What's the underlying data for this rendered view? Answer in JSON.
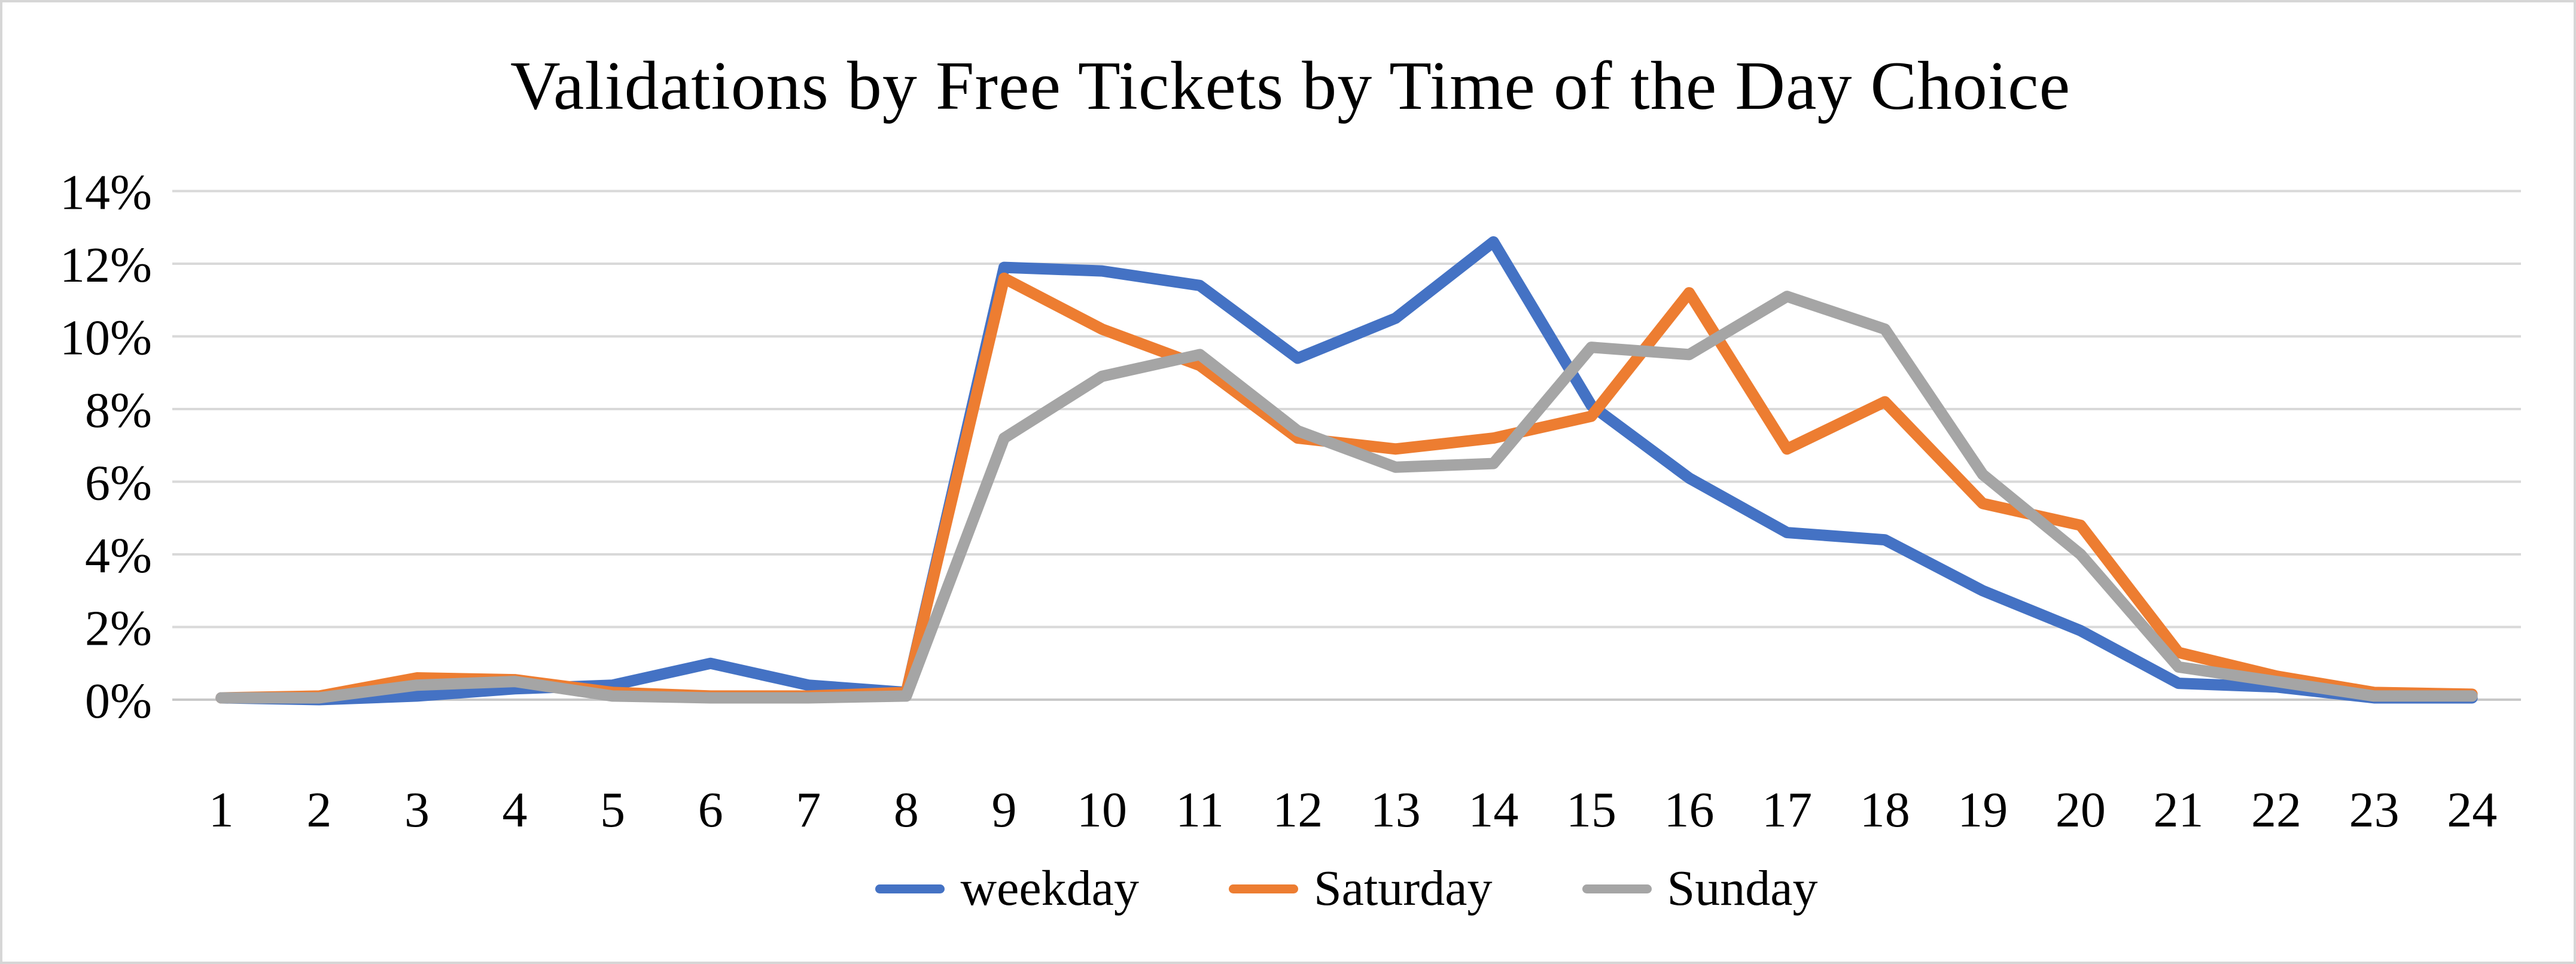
{
  "chart_data": {
    "type": "line",
    "title": "Validations by Free Tickets by Time of the Day Choice",
    "categories": [
      1,
      2,
      3,
      4,
      5,
      6,
      7,
      8,
      9,
      10,
      11,
      12,
      13,
      14,
      15,
      16,
      17,
      18,
      19,
      20,
      21,
      22,
      23,
      24
    ],
    "x_tick_labels": [
      "1",
      "2",
      "3",
      "4",
      "5",
      "6",
      "7",
      "8",
      "9",
      "10",
      "11",
      "12",
      "13",
      "14",
      "15",
      "16",
      "17",
      "18",
      "19",
      "20",
      "21",
      "22",
      "23",
      "24"
    ],
    "y_tick_labels": [
      "0%",
      "2%",
      "4%",
      "6%",
      "8%",
      "10%",
      "12%",
      "14%"
    ],
    "ylim_percent": [
      0,
      14
    ],
    "gridline_step_percent": 2,
    "grid": "horizontal-on",
    "legend_position": "bottom-center",
    "xlabel": "",
    "ylabel": "",
    "series": [
      {
        "name": "weekday",
        "color": "#4472C4",
        "values_percent": [
          0.05,
          0.0,
          0.1,
          0.3,
          0.4,
          1.0,
          0.4,
          0.2,
          11.9,
          11.8,
          11.4,
          9.4,
          10.5,
          12.6,
          8.1,
          6.1,
          4.6,
          4.4,
          3.0,
          1.9,
          0.45,
          0.35,
          0.05,
          0.05
        ]
      },
      {
        "name": "Saturday",
        "color": "#ED7D31",
        "values_percent": [
          0.05,
          0.1,
          0.6,
          0.55,
          0.2,
          0.1,
          0.1,
          0.2,
          11.6,
          10.2,
          9.2,
          7.2,
          6.9,
          7.2,
          7.8,
          11.2,
          6.9,
          8.2,
          5.4,
          4.8,
          1.3,
          0.65,
          0.2,
          0.15
        ]
      },
      {
        "name": "Sunday",
        "color": "#A5A5A5",
        "values_percent": [
          0.05,
          0.05,
          0.4,
          0.5,
          0.1,
          0.05,
          0.05,
          0.1,
          7.2,
          8.9,
          9.5,
          7.4,
          6.4,
          6.5,
          9.7,
          9.5,
          11.1,
          10.2,
          6.2,
          4.0,
          0.9,
          0.5,
          0.1,
          0.1
        ]
      }
    ],
    "colors": {
      "gridline": "#D9D9D9",
      "axis_line": "#C8C8C8",
      "tick_label": "#000000",
      "title": "#000000",
      "background": "#FFFFFF",
      "frame_border": "#D6D6D6"
    }
  }
}
